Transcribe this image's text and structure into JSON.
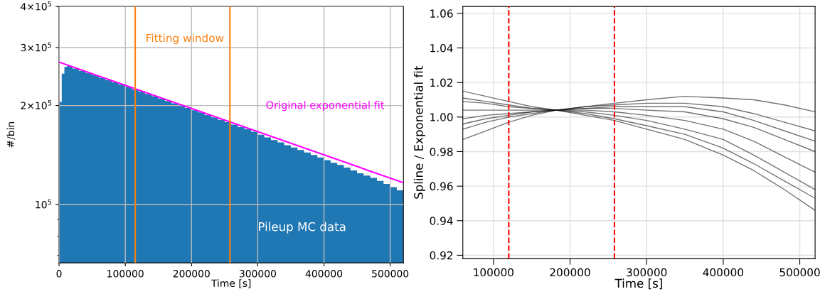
{
  "chart_data": [
    {
      "type": "histogram",
      "xlabel": "Time [s]",
      "ylabel": "#/bin",
      "log": "y",
      "grid": true,
      "legend": false,
      "xlim": [
        0,
        520000
      ],
      "xticks": [
        0,
        100000,
        200000,
        300000,
        400000,
        500000
      ],
      "ylim": [
        66500,
        400000
      ],
      "yticks": [
        {
          "value": 70000,
          "label": null
        },
        {
          "value": 80000,
          "label": null
        },
        {
          "value": 90000,
          "label": null
        },
        {
          "value": 100000,
          "label": "10$^{5}$"
        },
        {
          "value": 200000,
          "label": "2×10$^{5}$"
        },
        {
          "value": 300000,
          "label": "3×10$^{5}$"
        },
        {
          "value": 400000,
          "label": "4×10$^{5}$"
        }
      ],
      "ref_lines": [
        {
          "axis": "x",
          "value": 115000,
          "label": "Fitting window",
          "color": "#ff7f0e",
          "line_style": "solid"
        },
        {
          "axis": "x",
          "value": 258000,
          "label": null,
          "color": "#ff7f0e",
          "line_style": "solid"
        }
      ],
      "series": [
        {
          "type": "histogram",
          "name": "Pileup MC data",
          "color": "#1f77b4",
          "bins": [
            0,
            4000,
            8000,
            12000,
            20000,
            30000,
            40000,
            50000,
            60000,
            70000,
            80000,
            90000,
            100000,
            110000,
            120000,
            130000,
            140000,
            150000,
            160000,
            170000,
            180000,
            190000,
            200000,
            210000,
            220000,
            230000,
            240000,
            250000,
            260000,
            270000,
            280000,
            290000,
            300000,
            310000,
            320000,
            330000,
            340000,
            350000,
            360000,
            370000,
            380000,
            390000,
            400000,
            410000,
            420000,
            430000,
            440000,
            450000,
            460000,
            470000,
            480000,
            490000,
            500000,
            510000,
            520000
          ],
          "values": [
            205000,
            250000,
            262000,
            264000,
            259000,
            255000,
            251000,
            247000,
            243000,
            239000,
            235000,
            231500,
            228000,
            224000,
            220500,
            217000,
            213500,
            210000,
            206500,
            203000,
            200000,
            196500,
            193500,
            190500,
            187000,
            184000,
            181000,
            178000,
            175000,
            172000,
            169500,
            166500,
            163000,
            160000,
            157000,
            154500,
            151500,
            149000,
            146500,
            144000,
            141500,
            139000,
            136500,
            134000,
            132000,
            129500,
            127000,
            124500,
            122500,
            120500,
            118000,
            115500,
            113000,
            110500
          ]
        },
        {
          "type": "line",
          "name": "Original exponential fit",
          "color": "#ff00ff",
          "x": [
            0,
            520000
          ],
          "values": [
            271000,
            116500
          ]
        }
      ]
    },
    {
      "type": "line",
      "xlabel": "Time [s]",
      "ylabel": "Spline / Exponential fit",
      "grid": true,
      "legend": false,
      "xlim": [
        60000,
        520000
      ],
      "xticks": [
        100000,
        200000,
        300000,
        400000,
        500000
      ],
      "ylim": [
        0.918,
        1.064
      ],
      "yticks": [
        {
          "value": 0.92,
          "label": "0.92"
        },
        {
          "value": 0.94,
          "label": "0.94"
        },
        {
          "value": 0.96,
          "label": "0.96"
        },
        {
          "value": 0.98,
          "label": "0.98"
        },
        {
          "value": 1.0,
          "label": "1.00"
        },
        {
          "value": 1.02,
          "label": "1.02"
        },
        {
          "value": 1.04,
          "label": "1.04"
        },
        {
          "value": 1.06,
          "label": "1.06"
        }
      ],
      "ref_lines": [
        {
          "axis": "x",
          "value": 120000,
          "color": "#ff0000",
          "line_style": "dashed"
        },
        {
          "axis": "x",
          "value": 258000,
          "color": "#ff0000",
          "line_style": "dashed"
        }
      ],
      "x": [
        60000,
        90000,
        120000,
        150000,
        182000,
        220000,
        258000,
        300000,
        350000,
        400000,
        440000,
        480000,
        520000
      ],
      "series": [
        {
          "color": "#000000",
          "values": [
            0.987,
            0.992,
            0.997,
            1.001,
            1.004,
            1.006,
            1.008,
            1.01,
            1.012,
            1.011,
            1.01,
            1.007,
            1.003
          ]
        },
        {
          "color": "#000000",
          "values": [
            0.993,
            0.997,
            1.0,
            1.002,
            1.004,
            1.006,
            1.007,
            1.008,
            1.008,
            1.006,
            1.002,
            0.997,
            0.992
          ]
        },
        {
          "color": "#000000",
          "values": [
            0.996,
            0.999,
            1.001,
            1.003,
            1.004,
            1.005,
            1.006,
            1.006,
            1.006,
            1.003,
            0.998,
            0.992,
            0.986
          ]
        },
        {
          "color": "#000000",
          "values": [
            0.999,
            1.001,
            1.002,
            1.003,
            1.004,
            1.005,
            1.005,
            1.004,
            1.003,
            0.999,
            0.994,
            0.987,
            0.98
          ]
        },
        {
          "color": "#000000",
          "values": [
            1.004,
            1.004,
            1.004,
            1.004,
            1.004,
            1.004,
            1.003,
            1.001,
            0.998,
            0.993,
            0.986,
            0.977,
            0.968
          ]
        },
        {
          "color": "#000000",
          "values": [
            1.009,
            1.008,
            1.006,
            1.005,
            1.004,
            1.003,
            1.001,
            0.998,
            0.993,
            0.987,
            0.978,
            0.968,
            0.958
          ]
        },
        {
          "color": "#000000",
          "values": [
            1.011,
            1.009,
            1.007,
            1.005,
            1.004,
            1.002,
            0.999,
            0.995,
            0.99,
            0.982,
            0.973,
            0.963,
            0.953
          ]
        },
        {
          "color": "#000000",
          "values": [
            1.015,
            1.012,
            1.009,
            1.006,
            1.004,
            1.001,
            0.998,
            0.993,
            0.987,
            0.978,
            0.969,
            0.958,
            0.946
          ]
        }
      ]
    }
  ]
}
